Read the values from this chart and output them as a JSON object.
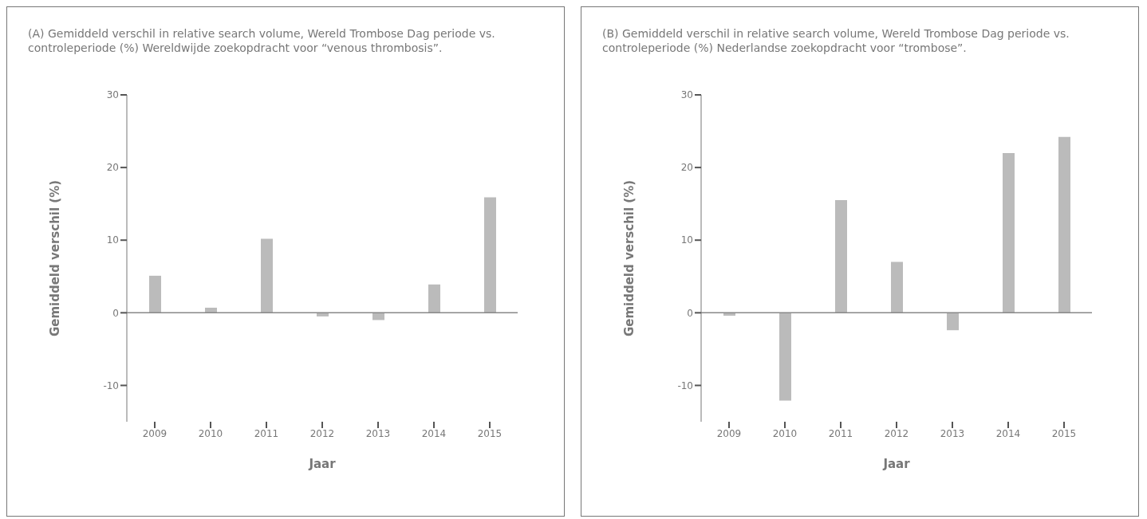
{
  "chart_data": [
    {
      "type": "bar",
      "title": "(A) Gemiddeld verschil in relative search volume, Wereld Trombose Dag periode vs. controleperiode (%) Wereldwijde zoekopdracht voor “venous thrombosis”.",
      "xlabel": "Jaar",
      "ylabel": "Gemiddeld verschil (%)",
      "categories": [
        "2009",
        "2010",
        "2011",
        "2012",
        "2013",
        "2014",
        "2015"
      ],
      "values": [
        5.1,
        0.7,
        10.2,
        -0.5,
        -1.0,
        3.9,
        15.9
      ],
      "color": "#bbbbbb",
      "ylim": [
        -15,
        30
      ],
      "yticks": [
        -10,
        0,
        10,
        20,
        30
      ],
      "grid": false,
      "ref_lines": [
        {
          "axis": "y",
          "value": 0,
          "color": "#888888"
        }
      ]
    },
    {
      "type": "bar",
      "title": "(B) Gemiddeld verschil in relative search volume, Wereld Trombose Dag periode vs. controleperiode (%) Nederlandse zoekopdracht voor “trombose”.",
      "xlabel": "Jaar",
      "ylabel": "Gemiddeld verschil (%)",
      "categories": [
        "2009",
        "2010",
        "2011",
        "2012",
        "2013",
        "2014",
        "2015"
      ],
      "values": [
        -0.4,
        -12.1,
        15.5,
        7.0,
        -2.4,
        22.0,
        24.2
      ],
      "color": "#bbbbbb",
      "ylim": [
        -15,
        30
      ],
      "yticks": [
        -10,
        0,
        10,
        20,
        30
      ],
      "grid": false,
      "ref_lines": [
        {
          "axis": "y",
          "value": 0,
          "color": "#888888"
        }
      ]
    }
  ]
}
